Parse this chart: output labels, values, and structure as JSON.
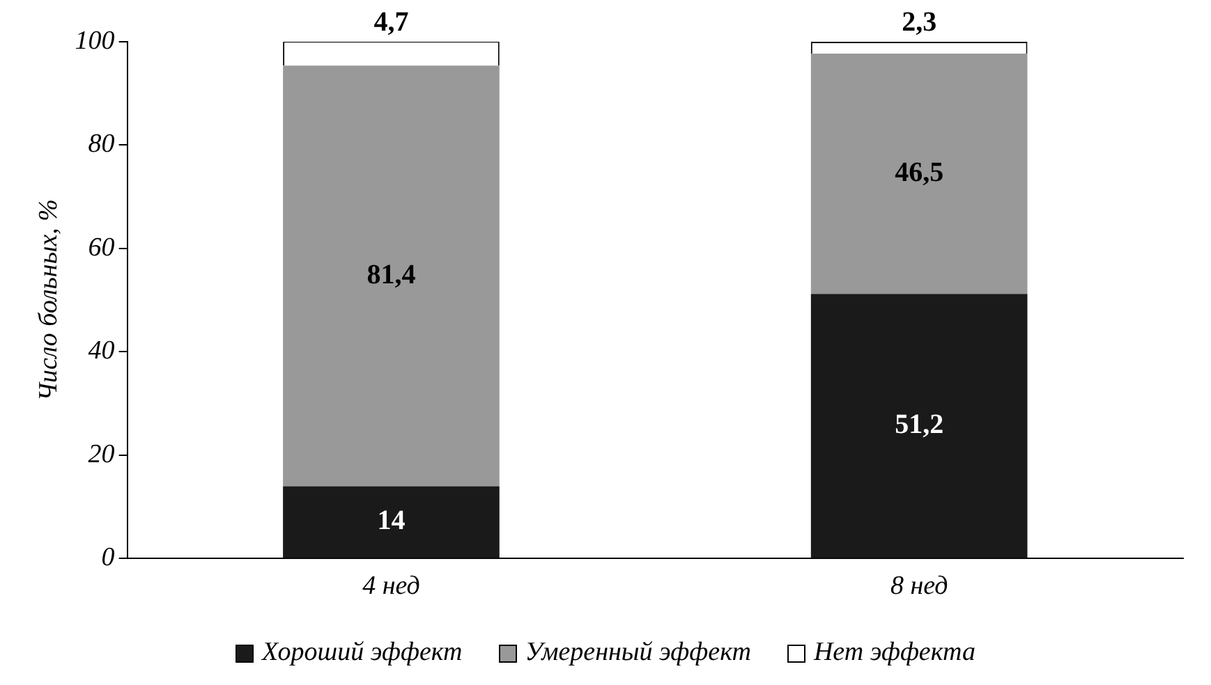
{
  "chart_data": {
    "type": "bar",
    "stacked": true,
    "ylabel": "Число больных, %",
    "categories": [
      "4 нед",
      "8 нед"
    ],
    "series": [
      {
        "name": "Хороший эффект",
        "color": "#1a1a1a",
        "values": [
          14,
          51.2
        ],
        "value_labels": [
          "14",
          "51,2"
        ]
      },
      {
        "name": "Умеренный эффект",
        "color": "#999999",
        "values": [
          81.4,
          46.5
        ],
        "value_labels": [
          "81,4",
          "46,5"
        ]
      },
      {
        "name": "Нет эффекта",
        "color": "#ffffff",
        "values": [
          4.7,
          2.3
        ],
        "value_labels": [
          "4,7",
          "2,3"
        ]
      }
    ],
    "ylim": [
      0,
      100
    ],
    "yticks": [
      0,
      20,
      40,
      60,
      80,
      100
    ],
    "grid": false,
    "legend": "bottom"
  }
}
